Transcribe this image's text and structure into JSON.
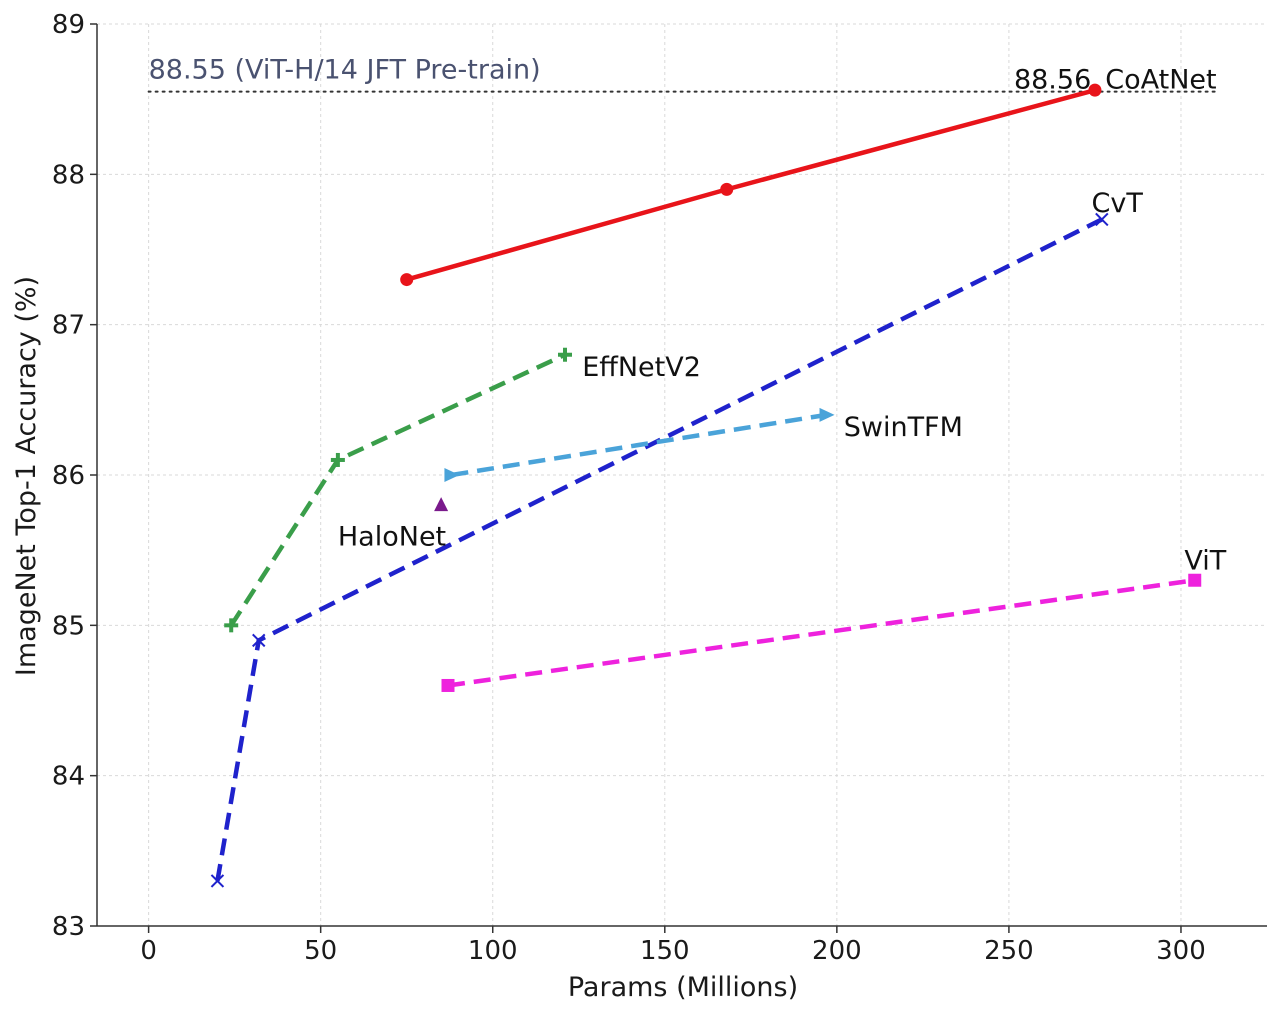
{
  "chart_data": {
    "type": "line",
    "xlabel": "Params (Millions)",
    "ylabel": "ImageNet Top-1 Accuracy (%)",
    "xlim": [
      -15,
      325
    ],
    "ylim": [
      83,
      89
    ],
    "xticks": [
      0,
      50,
      100,
      150,
      200,
      250,
      300
    ],
    "yticks": [
      83,
      84,
      85,
      86,
      87,
      88,
      89
    ],
    "xtick_labels": [
      "0",
      "50",
      "100",
      "150",
      "200",
      "250",
      "300"
    ],
    "ytick_labels": [
      "83",
      "84",
      "85",
      "86",
      "87",
      "88",
      "89"
    ],
    "grid": true,
    "reference_line": {
      "y": 88.55,
      "x_range": [
        0,
        310
      ],
      "label": "88.55 (ViT-H/14 JFT Pre-train)",
      "color": "#4a5270",
      "style": "dotted"
    },
    "series": [
      {
        "name": "CoAtNet",
        "color": "#e8141a",
        "line": "solid",
        "marker": "circle",
        "points": [
          [
            75,
            87.3
          ],
          [
            168,
            87.9
          ],
          [
            275,
            88.56
          ]
        ],
        "label_pos": [
          278,
          88.63
        ],
        "value_label": "88.56",
        "value_label_color": "#cc1a1a"
      },
      {
        "name": "CvT",
        "color": "#1f22cc",
        "line": "dashed",
        "marker": "x",
        "points": [
          [
            20,
            83.3
          ],
          [
            32,
            84.9
          ],
          [
            277,
            87.7
          ]
        ],
        "label_pos": [
          274,
          87.81
        ]
      },
      {
        "name": "EffNetV2",
        "color": "#3a9e4a",
        "line": "dashed",
        "marker": "plus",
        "points": [
          [
            24,
            85.0
          ],
          [
            55,
            86.1
          ],
          [
            121,
            86.8
          ]
        ],
        "label_pos": [
          126,
          86.72
        ]
      },
      {
        "name": "SwinTFM",
        "color": "#4aa3d9",
        "line": "dashed",
        "marker": "triangle-right",
        "points": [
          [
            88,
            86.0
          ],
          [
            197,
            86.4
          ]
        ],
        "label_pos": [
          202,
          86.32
        ]
      },
      {
        "name": "HaloNet",
        "color": "#7a1a8c",
        "line": "none",
        "marker": "triangle-up",
        "points": [
          [
            85,
            85.8
          ]
        ],
        "label_pos": [
          55,
          85.59
        ]
      },
      {
        "name": "ViT",
        "color": "#ee22dd",
        "line": "dashed",
        "marker": "square",
        "points": [
          [
            87,
            84.6
          ],
          [
            304,
            85.3
          ]
        ],
        "label_pos": [
          301,
          85.43
        ]
      }
    ]
  }
}
